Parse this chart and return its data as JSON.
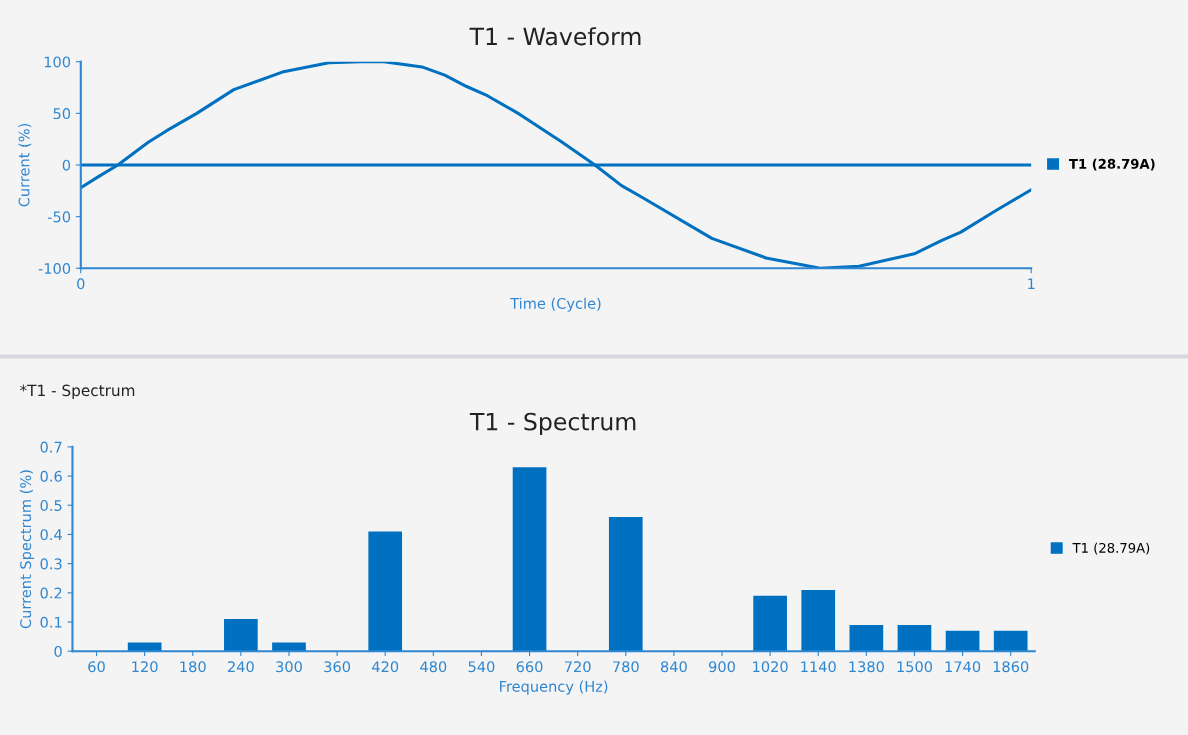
{
  "chart_data": [
    {
      "type": "line",
      "title": "T1 - Waveform",
      "xlabel": "Time (Cycle)",
      "ylabel": "Current (%)",
      "x": [
        0,
        0.019,
        0.039,
        0.071,
        0.09,
        0.122,
        0.161,
        0.212,
        0.261,
        0.295,
        0.319,
        0.359,
        0.383,
        0.406,
        0.426,
        0.462,
        0.505,
        0.541,
        0.569,
        0.59,
        0.664,
        0.721,
        0.778,
        0.819,
        0.877,
        0.906,
        0.926,
        0.963,
        1
      ],
      "series": [
        {
          "name": "T1 (28.79A)",
          "color": "#0070c0",
          "values": [
            -22,
            -11,
            0,
            22,
            33,
            50,
            73,
            90,
            99,
            100,
            100,
            95,
            87,
            76,
            68,
            49,
            23,
            0,
            -20,
            -31,
            -71,
            -90,
            -100,
            -98,
            -86,
            -73,
            -65,
            -44,
            -24
          ]
        }
      ],
      "xlim": [
        0,
        1
      ],
      "xticks": [
        0,
        1
      ],
      "ylim": [
        -100,
        100
      ],
      "yticks": [
        -100,
        -50,
        0,
        50,
        100
      ],
      "ref_lines": [
        {
          "axis": "y",
          "value": 0,
          "color": "#0070c0"
        }
      ],
      "grid": false,
      "legend": "right",
      "marker": "none",
      "line_style": "solid"
    },
    {
      "type": "bar",
      "title": "T1 - Spectrum",
      "xlabel": "Frequency (Hz)",
      "ylabel": "Current Spectrum (%)",
      "annotations": [
        "*T1 - Spectrum"
      ],
      "categories": [
        "60",
        "120",
        "180",
        "240",
        "300",
        "360",
        "420",
        "480",
        "540",
        "660",
        "720",
        "780",
        "840",
        "900",
        "1020",
        "1140",
        "1380",
        "1500",
        "1740",
        "1860"
      ],
      "series": [
        {
          "name": "T1 (28.79A)",
          "color": "#0070c0",
          "values": [
            0,
            0.03,
            0,
            0.11,
            0.03,
            0,
            0.41,
            0,
            0,
            0.63,
            0,
            0.46,
            0,
            0,
            0.19,
            0.21,
            0.09,
            0.09,
            0.07,
            0.07
          ]
        }
      ],
      "ylim": [
        0,
        0.7
      ],
      "yticks": [
        0,
        0.1,
        0.2,
        0.3,
        0.4,
        0.5,
        0.6,
        0.7
      ],
      "grid": false,
      "legend": "right"
    }
  ]
}
